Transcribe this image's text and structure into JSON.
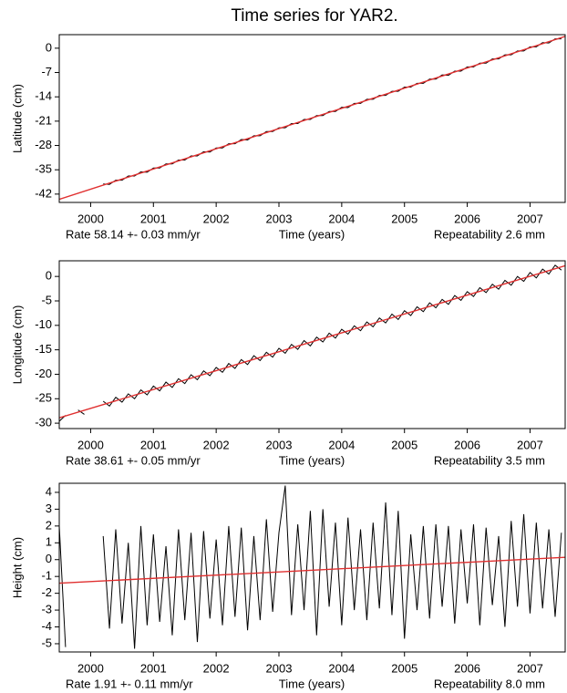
{
  "title": "Time series for YAR2.",
  "chart_data": [
    {
      "type": "line",
      "ylabel": "Latitude (cm)",
      "xlabel": "Time (years)",
      "rate_label": "Rate 58.14 +- 0.03 mm/yr",
      "repeatability_label": "Repeatability 2.6 mm",
      "xlim": [
        1999.5,
        2007.56
      ],
      "ylim": [
        -44.4,
        3.9
      ],
      "xticks": [
        2000,
        2001,
        2002,
        2003,
        2004,
        2005,
        2006,
        2007
      ],
      "yticks": [
        0,
        -7,
        -14,
        -21,
        -28,
        -35,
        -42
      ],
      "x": [
        1999.5,
        1999.6,
        1999.7,
        1999.8,
        1999.9,
        2000.0,
        2000.1,
        2000.2,
        2000.3,
        2000.4,
        2000.5,
        2000.6,
        2000.7,
        2000.8,
        2000.9,
        2001.0,
        2001.1,
        2001.2,
        2001.3,
        2001.4,
        2001.5,
        2001.6,
        2001.7,
        2001.8,
        2001.9,
        2002.0,
        2002.1,
        2002.2,
        2002.3,
        2002.4,
        2002.5,
        2002.6,
        2002.7,
        2002.8,
        2002.9,
        2003.0,
        2003.1,
        2003.2,
        2003.3,
        2003.4,
        2003.5,
        2003.6,
        2003.7,
        2003.8,
        2003.9,
        2004.0,
        2004.1,
        2004.2,
        2004.3,
        2004.4,
        2004.5,
        2004.6,
        2004.7,
        2004.8,
        2004.9,
        2005.0,
        2005.1,
        2005.2,
        2005.3,
        2005.4,
        2005.5,
        2005.6,
        2005.7,
        2005.8,
        2005.9,
        2006.0,
        2006.1,
        2006.2,
        2006.3,
        2006.4,
        2006.5,
        2006.6,
        2006.7,
        2006.8,
        2006.9,
        2007.0,
        2007.1,
        2007.2,
        2007.3,
        2007.4,
        2007.5
      ],
      "series": [
        {
          "color": "#000000",
          "values": [
            -43.4,
            null,
            null,
            -41.9,
            null,
            null,
            null,
            -39.1,
            -39.2,
            -38.0,
            -38.0,
            -36.8,
            -36.8,
            -35.6,
            -35.7,
            -34.5,
            -34.5,
            -33.3,
            -33.3,
            -32.2,
            -32.2,
            -31.0,
            -31.0,
            -29.8,
            -29.9,
            -28.7,
            -28.7,
            -27.5,
            -27.5,
            -26.3,
            -26.4,
            -25.2,
            -25.2,
            -24.0,
            -24.0,
            -22.9,
            -22.9,
            -21.7,
            -21.7,
            -20.5,
            -20.5,
            -19.4,
            -19.4,
            -18.2,
            -18.2,
            -17.0,
            -17.1,
            -15.9,
            -15.9,
            -14.7,
            -14.7,
            -13.6,
            -13.6,
            -12.4,
            -12.4,
            -11.2,
            -11.2,
            -10.1,
            -10.1,
            -8.9,
            -8.9,
            -7.7,
            -7.8,
            -6.6,
            -6.6,
            -5.4,
            -5.4,
            -4.3,
            -4.3,
            -3.1,
            -3.1,
            -1.9,
            -1.9,
            -0.8,
            -0.8,
            0.4,
            0.4,
            1.6,
            1.5,
            2.7,
            2.7
          ]
        },
        {
          "color": "#e03030",
          "x": [
            1999.5,
            2007.56
          ],
          "values": [
            -43.5,
            3.4
          ]
        }
      ]
    },
    {
      "type": "line",
      "ylabel": "Longitude (cm)",
      "xlabel": "Time (years)",
      "rate_label": "Rate 38.61 +- 0.05 mm/yr",
      "repeatability_label": "Repeatability 3.5 mm",
      "xlim": [
        1999.5,
        2007.56
      ],
      "ylim": [
        -31.1,
        3.2
      ],
      "xticks": [
        2000,
        2001,
        2002,
        2003,
        2004,
        2005,
        2006,
        2007
      ],
      "yticks": [
        0,
        -5,
        -10,
        -15,
        -20,
        -25,
        -30
      ],
      "x": [
        1999.5,
        1999.6,
        1999.7,
        1999.8,
        1999.9,
        2000.0,
        2000.1,
        2000.2,
        2000.3,
        2000.4,
        2000.5,
        2000.6,
        2000.7,
        2000.8,
        2000.9,
        2001.0,
        2001.1,
        2001.2,
        2001.3,
        2001.4,
        2001.5,
        2001.6,
        2001.7,
        2001.8,
        2001.9,
        2002.0,
        2002.1,
        2002.2,
        2002.3,
        2002.4,
        2002.5,
        2002.6,
        2002.7,
        2002.8,
        2002.9,
        2003.0,
        2003.1,
        2003.2,
        2003.3,
        2003.4,
        2003.5,
        2003.6,
        2003.7,
        2003.8,
        2003.9,
        2004.0,
        2004.1,
        2004.2,
        2004.3,
        2004.4,
        2004.5,
        2004.6,
        2004.7,
        2004.8,
        2004.9,
        2005.0,
        2005.1,
        2005.2,
        2005.3,
        2005.4,
        2005.5,
        2005.6,
        2005.7,
        2005.8,
        2005.9,
        2006.0,
        2006.1,
        2006.2,
        2006.3,
        2006.4,
        2006.5,
        2006.6,
        2006.7,
        2006.8,
        2006.9,
        2007.0,
        2007.1,
        2007.2,
        2007.3,
        2007.4,
        2007.5
      ],
      "series": [
        {
          "color": "#000000",
          "values": [
            -29.6,
            -28.4,
            null,
            -27.3,
            -28.2,
            null,
            null,
            -25.5,
            -26.5,
            -24.7,
            -25.7,
            -24.0,
            -25.0,
            -23.2,
            -24.2,
            -22.4,
            -23.4,
            -21.6,
            -22.7,
            -20.9,
            -21.9,
            -20.1,
            -21.1,
            -19.3,
            -20.3,
            -18.6,
            -19.6,
            -17.8,
            -18.8,
            -17.0,
            -18.0,
            -16.2,
            -17.2,
            -15.5,
            -16.5,
            -14.7,
            -15.7,
            -13.9,
            -14.9,
            -13.1,
            -14.2,
            -12.4,
            -13.4,
            -11.6,
            -12.6,
            -10.8,
            -11.8,
            -10.1,
            -11.1,
            -9.3,
            -10.3,
            -8.5,
            -9.5,
            -7.7,
            -8.8,
            -7.0,
            -8.0,
            -6.2,
            -7.2,
            -5.4,
            -6.4,
            -4.7,
            -5.7,
            -3.9,
            -4.9,
            -3.1,
            -4.1,
            -2.3,
            -3.3,
            -1.6,
            -2.6,
            -0.8,
            -1.8,
            0.0,
            -1.0,
            0.8,
            -0.3,
            1.5,
            0.5,
            2.3,
            1.3
          ]
        },
        {
          "color": "#e03030",
          "x": [
            1999.5,
            2007.56
          ],
          "values": [
            -28.9,
            2.2
          ]
        }
      ]
    },
    {
      "type": "line",
      "ylabel": "Height (cm)",
      "xlabel": "Time (years)",
      "rate_label": "Rate 1.91 +- 0.11 mm/yr",
      "repeatability_label": "Repeatability 8.0 mm",
      "xlim": [
        1999.5,
        2007.56
      ],
      "ylim": [
        -5.49,
        4.54
      ],
      "xticks": [
        2000,
        2001,
        2002,
        2003,
        2004,
        2005,
        2006,
        2007
      ],
      "yticks": [
        4,
        3,
        2,
        1,
        0,
        -1,
        -2,
        -3,
        -4,
        -5
      ],
      "x": [
        1999.5,
        1999.6,
        1999.7,
        1999.8,
        1999.9,
        2000.0,
        2000.1,
        2000.2,
        2000.3,
        2000.4,
        2000.5,
        2000.6,
        2000.7,
        2000.8,
        2000.9,
        2001.0,
        2001.1,
        2001.2,
        2001.3,
        2001.4,
        2001.5,
        2001.6,
        2001.7,
        2001.8,
        2001.9,
        2002.0,
        2002.1,
        2002.2,
        2002.3,
        2002.4,
        2002.5,
        2002.6,
        2002.7,
        2002.8,
        2002.9,
        2003.0,
        2003.1,
        2003.2,
        2003.3,
        2003.4,
        2003.5,
        2003.6,
        2003.7,
        2003.8,
        2003.9,
        2004.0,
        2004.1,
        2004.2,
        2004.3,
        2004.4,
        2004.5,
        2004.6,
        2004.7,
        2004.8,
        2004.9,
        2005.0,
        2005.1,
        2005.2,
        2005.3,
        2005.4,
        2005.5,
        2005.6,
        2005.7,
        2005.8,
        2005.9,
        2006.0,
        2006.1,
        2006.2,
        2006.3,
        2006.4,
        2006.5,
        2006.6,
        2006.7,
        2006.8,
        2006.9,
        2007.0,
        2007.1,
        2007.2,
        2007.3,
        2007.4,
        2007.5
      ],
      "series": [
        {
          "color": "#000000",
          "values": [
            2.0,
            -5.2,
            null,
            4.4,
            null,
            null,
            null,
            1.4,
            -4.1,
            1.8,
            -3.8,
            1.0,
            -5.3,
            2.0,
            -3.9,
            1.5,
            -3.7,
            0.8,
            -4.5,
            1.8,
            -3.6,
            1.6,
            -4.9,
            1.7,
            -3.5,
            1.2,
            -3.9,
            2.0,
            -3.4,
            1.9,
            -4.2,
            1.4,
            -3.6,
            2.4,
            -3.1,
            1.6,
            4.4,
            -3.3,
            2.1,
            -3.0,
            2.9,
            -4.5,
            3.0,
            -2.8,
            2.2,
            -3.9,
            2.5,
            -3.0,
            1.8,
            -3.6,
            2.2,
            -2.9,
            3.4,
            -3.3,
            2.9,
            -4.7,
            1.5,
            -3.0,
            2.0,
            -3.5,
            2.1,
            -2.8,
            2.0,
            -3.8,
            1.8,
            -2.6,
            2.1,
            -3.9,
            1.9,
            -2.7,
            1.4,
            -4.0,
            2.3,
            -2.8,
            2.7,
            -3.2,
            2.2,
            -2.9,
            1.8,
            -3.4,
            1.6
          ]
        },
        {
          "color": "#e03030",
          "x": [
            1999.5,
            2007.56
          ],
          "values": [
            -1.4,
            0.14
          ]
        }
      ]
    }
  ]
}
